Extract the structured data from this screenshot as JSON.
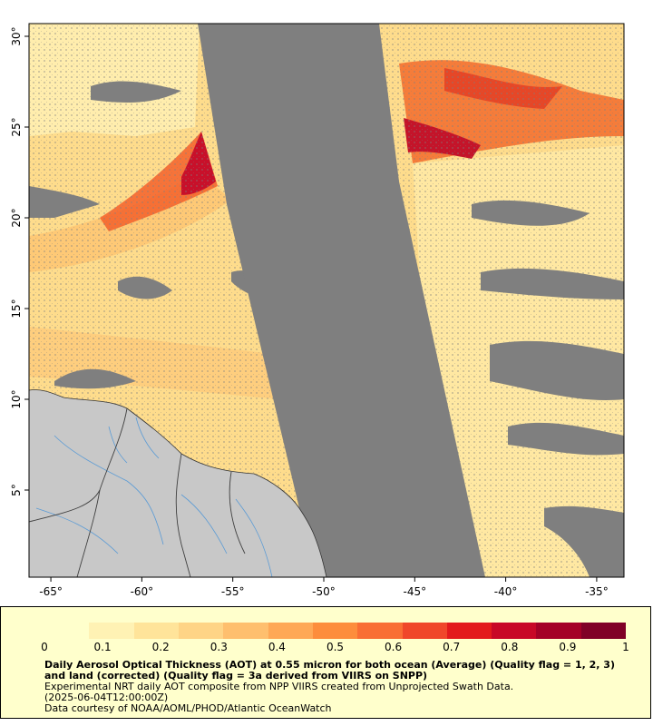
{
  "map": {
    "x_axis": {
      "unit": "°",
      "ticks": [
        "-65°",
        "-60°",
        "-55°",
        "-50°",
        "-45°",
        "-40°",
        "-35°"
      ],
      "tick_values": [
        -65,
        -60,
        -55,
        -50,
        -45,
        -40,
        -35
      ],
      "range": [
        -66.2,
        -33.5
      ]
    },
    "y_axis": {
      "ticks": [
        "5°",
        "10°",
        "15°",
        "20°",
        "25°",
        "30°"
      ],
      "tick_values": [
        5,
        10,
        15,
        20,
        25,
        30
      ],
      "range": [
        0.2,
        30.7
      ]
    },
    "colors": {
      "no_data": "#7f7f7f",
      "land": "#c8c8c8",
      "rivers": "#5b9bd5",
      "borders": "#404040",
      "frame": "#000000"
    }
  },
  "legend": {
    "background": "#ffffcc",
    "colorbar_labels": [
      "0",
      "0.1",
      "0.2",
      "0.3",
      "0.4",
      "0.5",
      "0.6",
      "0.7",
      "0.8",
      "0.9",
      "1"
    ],
    "colorbar_range": [
      0,
      1
    ],
    "colorbar_colors": [
      "#ffffcc",
      "#fff2b4",
      "#ffe49a",
      "#fed486",
      "#febf6e",
      "#fea856",
      "#fd8d3c",
      "#f96e34",
      "#f0472a",
      "#e31a1c",
      "#c80726",
      "#a40026",
      "#800026"
    ],
    "title": "Daily Aerosol Optical Thickness (AOT) at 0.55 micron for both ocean (Average) (Quality flag = 1, 2, 3) and land (corrected) (Quality flag = 3a derived from VIIRS on SNPP)",
    "lines": [
      "Experimental NRT daily AOT composite from NPP VIIRS created from Unprojected Swath Data.",
      "(2025-06-04T12:00:00Z)",
      "Data courtesy of NOAA/AOML/PHOD/Atlantic OceanWatch"
    ]
  }
}
